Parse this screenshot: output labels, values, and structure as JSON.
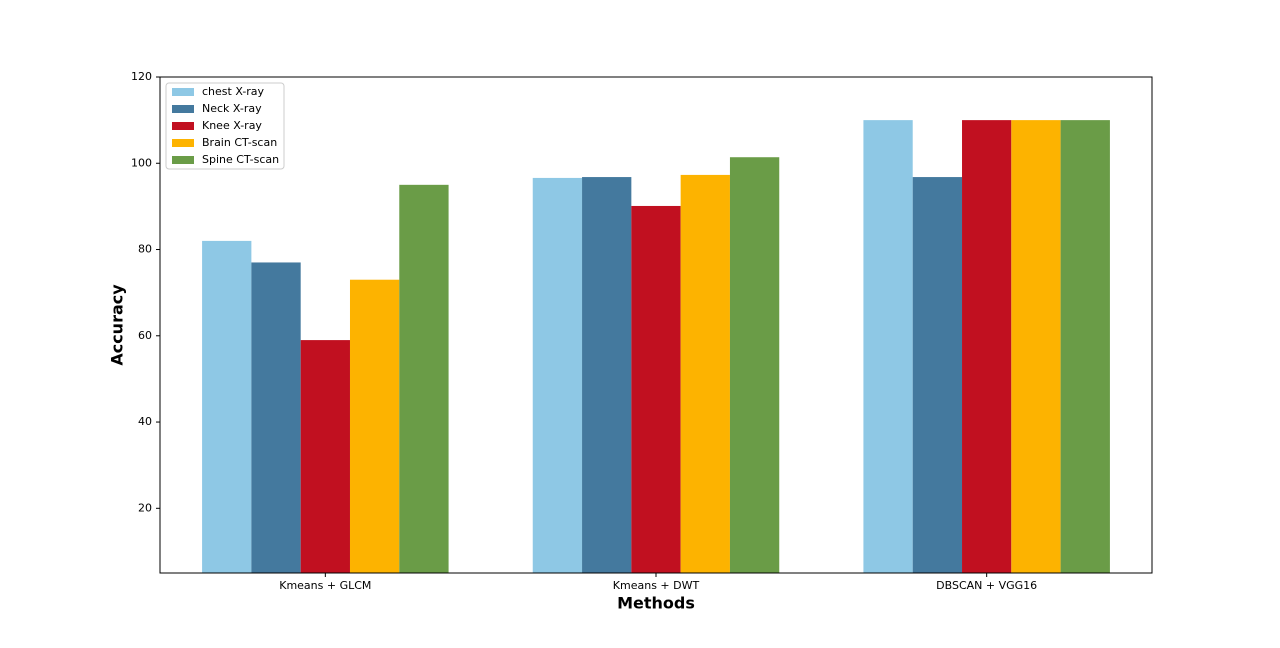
{
  "chart_data": {
    "type": "bar",
    "x_label": "Methods",
    "y_label": "Accuracy",
    "categories": [
      "Kmeans + GLCM",
      "Kmeans + DWT",
      "DBSCAN + VGG16"
    ],
    "series": [
      {
        "name": "chest X-ray",
        "color": "#8ec8e5",
        "values": [
          82,
          96.6,
          110
        ]
      },
      {
        "name": "Neck X-ray",
        "color": "#44799e",
        "values": [
          77,
          96.8,
          96.8
        ]
      },
      {
        "name": "Knee X-ray",
        "color": "#c11020",
        "values": [
          59,
          90.1,
          110
        ]
      },
      {
        "name": "Brain CT-scan",
        "color": "#fdb300",
        "values": [
          73,
          97.3,
          110
        ]
      },
      {
        "name": "Spine CT-scan",
        "color": "#6a9c47",
        "values": [
          95,
          101.4,
          110
        ]
      }
    ],
    "ylim": [
      5,
      120
    ],
    "yticks": [
      20,
      40,
      60,
      80,
      100,
      120
    ],
    "legend": "upper left"
  }
}
